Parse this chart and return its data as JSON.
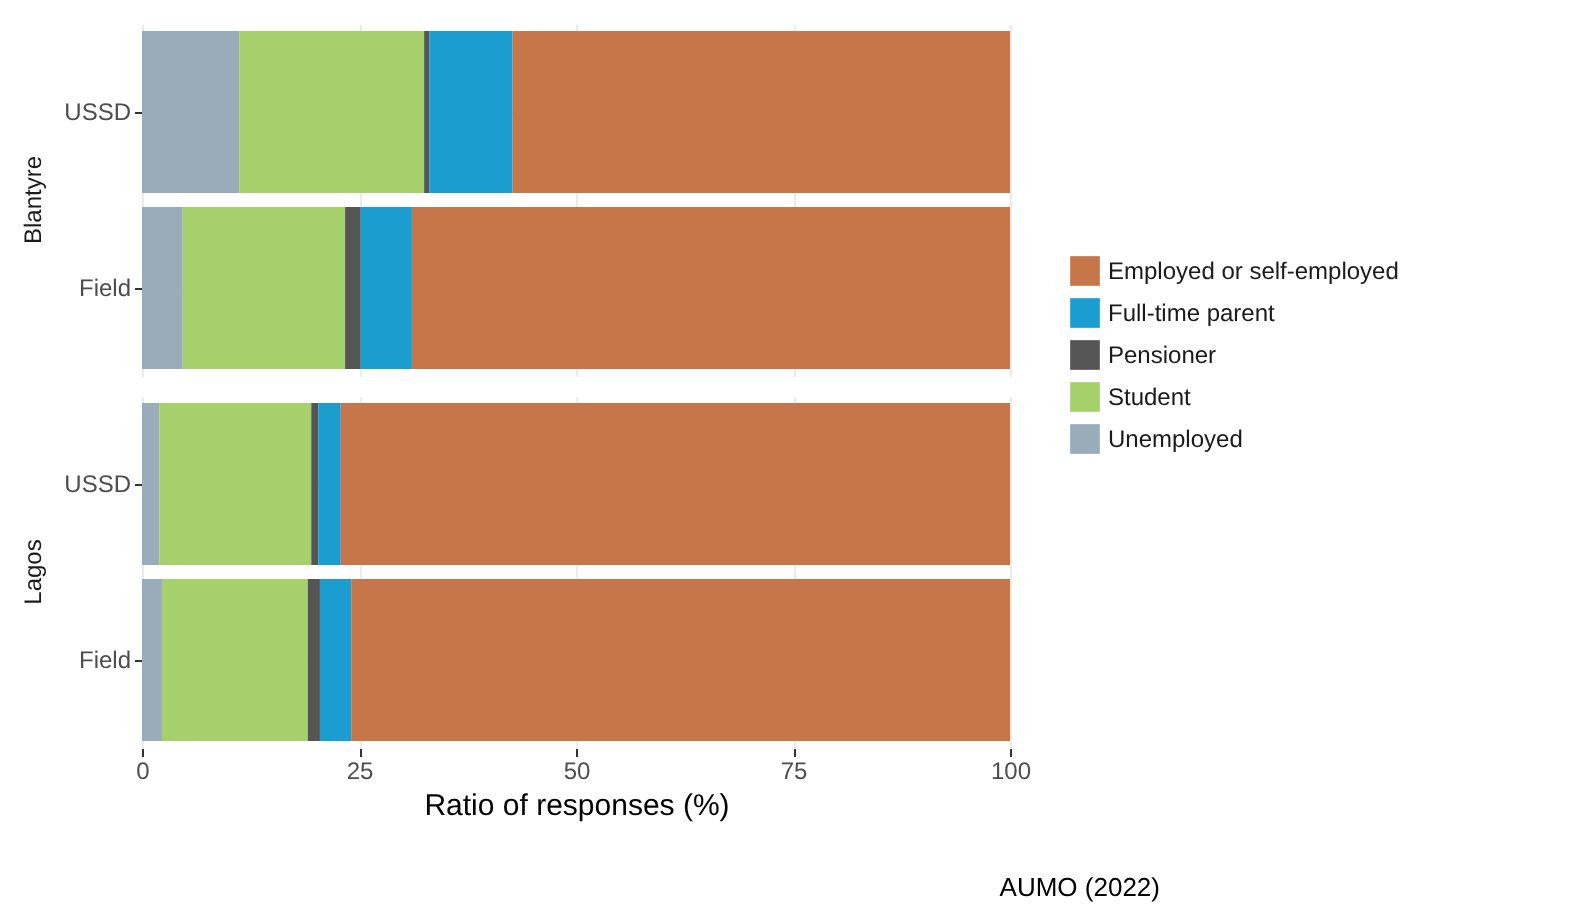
{
  "chart_data": [
    {
      "type": "bar",
      "title": "Blantyre",
      "orientation": "horizontal",
      "stacked": true,
      "categories": [
        "USSD",
        "Field"
      ],
      "series": [
        {
          "name": "Unemployed",
          "color": "#9aabb9",
          "values": [
            11.2,
            4.7
          ]
        },
        {
          "name": "Student",
          "color": "#a6d06c",
          "values": [
            21.3,
            18.7
          ]
        },
        {
          "name": "Pensioner",
          "color": "#555555",
          "values": [
            0.6,
            1.8
          ]
        },
        {
          "name": "Full-time parent",
          "color": "#1b9dd0",
          "values": [
            9.6,
            5.9
          ]
        },
        {
          "name": "Employed or self-employed",
          "color": "#c67649",
          "values": [
            57.3,
            68.9
          ]
        }
      ],
      "xlim": [
        0,
        100
      ],
      "xticks": [
        0,
        25,
        50,
        75,
        100
      ],
      "grid": true,
      "legend": "right",
      "tick_labels": "y"
    },
    {
      "type": "bar",
      "title": "Lagos",
      "orientation": "horizontal",
      "stacked": true,
      "categories": [
        "USSD",
        "Field"
      ],
      "series": [
        {
          "color": "#9aabb9",
          "values": [
            2.0,
            2.3
          ]
        },
        {
          "color": "#a6d06c",
          "values": [
            17.5,
            16.8
          ]
        },
        {
          "color": "#555555",
          "values": [
            0.8,
            1.4
          ]
        },
        {
          "color": "#1b9dd0",
          "values": [
            2.6,
            3.6
          ]
        },
        {
          "color": "#c67649",
          "values": [
            77.1,
            75.9
          ]
        }
      ],
      "xlim": [
        0,
        100
      ],
      "xticks": [
        0,
        25,
        50,
        75,
        100
      ],
      "grid": true,
      "xlabel": "Ratio of responses (%)",
      "annotations": [
        "AUMO (2022)"
      ]
    }
  ]
}
